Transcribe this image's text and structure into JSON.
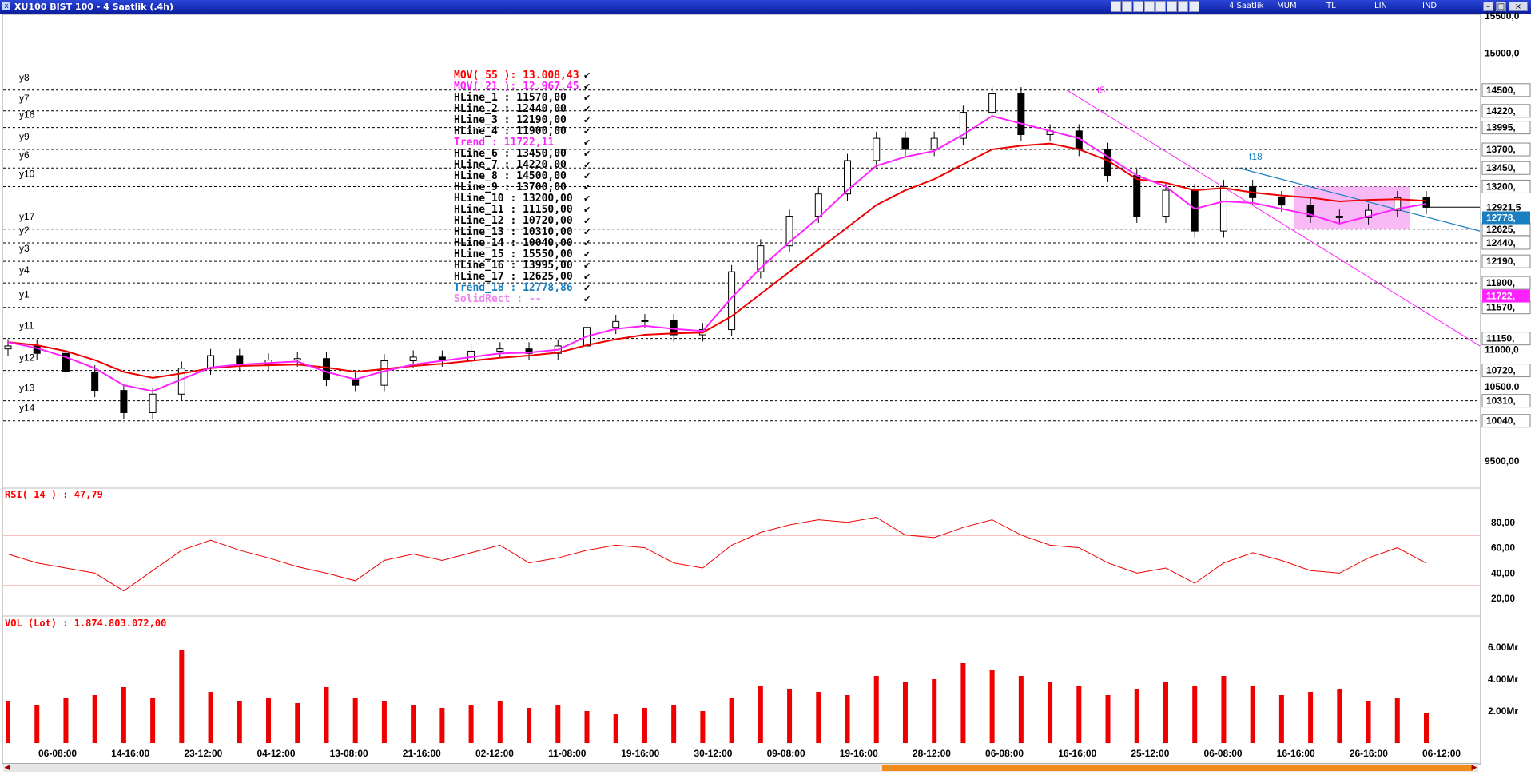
{
  "window": {
    "title": "XU100 BIST 100 - 4 Saatlik (.4h)",
    "toolbar": [
      "4 Saatlik",
      "MUM",
      "TL",
      "LIN",
      "IND"
    ]
  },
  "price_panel": {
    "legend": [
      {
        "label": "MOV( 55 ): 13.008,43",
        "color": "#ff0000"
      },
      {
        "label": "MOV( 21 ): 12.967,45",
        "color": "#ff22ff"
      },
      {
        "label": "HLine_1   : 11570,00",
        "color": "#000000"
      },
      {
        "label": "HLine_2   : 12440,00",
        "color": "#000000"
      },
      {
        "label": "HLine_3   : 12190,00",
        "color": "#000000"
      },
      {
        "label": "HLine_4   : 11900,00",
        "color": "#000000"
      },
      {
        "label": "Trend       : 11722,11",
        "color": "#ff22ff"
      },
      {
        "label": "HLine_6   : 13450,00",
        "color": "#000000"
      },
      {
        "label": "HLine_7   : 14220,00",
        "color": "#000000"
      },
      {
        "label": "HLine_8   : 14500,00",
        "color": "#000000"
      },
      {
        "label": "HLine_9   : 13700,00",
        "color": "#000000"
      },
      {
        "label": "HLine_10 : 13200,00",
        "color": "#000000"
      },
      {
        "label": "HLine_11 : 11150,00",
        "color": "#000000"
      },
      {
        "label": "HLine_12 : 10720,00",
        "color": "#000000"
      },
      {
        "label": "HLine_13 : 10310,00",
        "color": "#000000"
      },
      {
        "label": "HLine_14 : 10040,00",
        "color": "#000000"
      },
      {
        "label": "HLine_15 : 15550,00",
        "color": "#000000"
      },
      {
        "label": "HLine_16 : 13995,00",
        "color": "#000000"
      },
      {
        "label": "HLine_17 : 12625,00",
        "color": "#000000"
      },
      {
        "label": "Trend_18 : 12778,86",
        "color": "#1a7fc0"
      },
      {
        "label": "SolidRect : --",
        "color": "#ee88ee"
      }
    ],
    "hlines": [
      {
        "name": "y8",
        "value": 14500,
        "tag": "14500,"
      },
      {
        "name": "y7",
        "value": 14220,
        "tag": "14220,"
      },
      {
        "name": "y16",
        "value": 13995,
        "tag": "13995,"
      },
      {
        "name": "y9",
        "value": 13700,
        "tag": "13700,"
      },
      {
        "name": "y6",
        "value": 13450,
        "tag": "13450,"
      },
      {
        "name": "y10",
        "value": 13200,
        "tag": "13200,"
      },
      {
        "name": "y17",
        "value": 12625,
        "tag": "12625,"
      },
      {
        "name": "y2",
        "value": 12440,
        "tag": "12440,"
      },
      {
        "name": "y3",
        "value": 12190,
        "tag": "12190,"
      },
      {
        "name": "y4",
        "value": 11900,
        "tag": "11900,"
      },
      {
        "name": "y1",
        "value": 11570,
        "tag": "11570,"
      },
      {
        "name": "y11",
        "value": 11150,
        "tag": "11150,"
      },
      {
        "name": "y12",
        "value": 10720,
        "tag": "10720,"
      },
      {
        "name": "y13",
        "value": 10310,
        "tag": "10310,"
      },
      {
        "name": "y14",
        "value": 10040,
        "tag": "10040,"
      }
    ],
    "axis_ticks": [
      "15500,0",
      "15000,0",
      "11000,0",
      "10500,0",
      "9500,00"
    ],
    "markers": [
      {
        "label": "12921,5",
        "value": 12921.5,
        "bg": "#ffffff",
        "fg": "#000000"
      },
      {
        "label": "12778,",
        "value": 12778.86,
        "bg": "#1a7fc0",
        "fg": "#ffffff"
      },
      {
        "label": "11722,",
        "value": 11722.11,
        "bg": "#ff22ff",
        "fg": "#ffffff"
      }
    ],
    "trend_labels": [
      {
        "label": "t5",
        "color": "#ff22ff"
      },
      {
        "label": "t18",
        "color": "#1a7fc0"
      }
    ]
  },
  "rsi_panel": {
    "title": "RSI( 14 ) : 47,79",
    "ticks": [
      "80,00",
      "60,00",
      "40,00",
      "20,00"
    ]
  },
  "vol_panel": {
    "title": "VOL (Lot) : 1.874.803.072,00",
    "ticks": [
      "6.00Mr",
      "4.00Mr",
      "2.00Mr"
    ]
  },
  "x_axis": [
    "06-08:00",
    "14-16:00",
    "23-12:00",
    "04-12:00",
    "13-08:00",
    "21-16:00",
    "02-12:00",
    "11-08:00",
    "19-16:00",
    "30-12:00",
    "09-08:00",
    "19-16:00",
    "28-12:00",
    "06-08:00",
    "16-16:00",
    "25-12:00",
    "06-08:00",
    "16-16:00",
    "26-16:00",
    "06-12:00"
  ],
  "chart_data": [
    {
      "type": "line",
      "title": "XU100 BIST 100 - 4 Saatlik (.4h)",
      "ylim": [
        9250,
        15500
      ],
      "x_ticks": [
        "06-08:00",
        "14-16:00",
        "23-12:00",
        "04-12:00",
        "13-08:00",
        "21-16:00",
        "02-12:00",
        "11-08:00",
        "19-16:00",
        "30-12:00",
        "09-08:00",
        "19-16:00",
        "28-12:00",
        "06-08:00",
        "16-16:00",
        "25-12:00",
        "06-08:00",
        "16-16:00",
        "26-16:00",
        "06-12:00"
      ],
      "series": [
        {
          "name": "Close",
          "values": [
            11050,
            10950,
            10700,
            10450,
            10150,
            10400,
            10750,
            10920,
            10800,
            10860,
            10880,
            10600,
            10520,
            10850,
            10900,
            10860,
            10980,
            11010,
            10950,
            11050,
            11300,
            11380,
            11390,
            11200,
            11270,
            12050,
            12400,
            12800,
            13100,
            13550,
            13850,
            13700,
            13850,
            14200,
            14450,
            13900,
            13950,
            13700,
            13350,
            12800,
            13150,
            12600,
            13200,
            13050,
            12950,
            12800,
            12780,
            12880,
            13050,
            12920
          ]
        },
        {
          "name": "MOV( 21 )",
          "values": [
            11100,
            11020,
            10900,
            10750,
            10520,
            10440,
            10600,
            10760,
            10800,
            10820,
            10840,
            10700,
            10600,
            10710,
            10800,
            10850,
            10900,
            10950,
            10960,
            11000,
            11180,
            11280,
            11320,
            11280,
            11250,
            11700,
            12100,
            12450,
            12780,
            13150,
            13480,
            13600,
            13680,
            13900,
            14150,
            14050,
            13950,
            13850,
            13600,
            13350,
            13200,
            12900,
            13000,
            12980,
            12900,
            12820,
            12700,
            12800,
            12900,
            12967
          ]
        },
        {
          "name": "MOV( 55 )",
          "values": [
            11100,
            11060,
            10980,
            10860,
            10700,
            10620,
            10680,
            10750,
            10780,
            10790,
            10800,
            10760,
            10700,
            10740,
            10780,
            10810,
            10850,
            10890,
            10920,
            10960,
            11060,
            11140,
            11200,
            11220,
            11230,
            11450,
            11750,
            12050,
            12350,
            12650,
            12950,
            13150,
            13300,
            13500,
            13700,
            13750,
            13780,
            13700,
            13550,
            13300,
            13250,
            13150,
            13180,
            13120,
            13080,
            13050,
            13000,
            13020,
            13030,
            13008
          ]
        }
      ]
    },
    {
      "type": "line",
      "title": "RSI( 14 )",
      "ylim": [
        10,
        95
      ],
      "series": [
        {
          "name": "RSI( 14 )",
          "values": [
            55,
            48,
            44,
            40,
            26,
            42,
            58,
            66,
            58,
            52,
            45,
            40,
            34,
            50,
            55,
            50,
            56,
            62,
            48,
            52,
            58,
            62,
            60,
            48,
            44,
            62,
            72,
            78,
            82,
            80,
            84,
            70,
            68,
            76,
            82,
            70,
            62,
            60,
            48,
            40,
            44,
            32,
            48,
            56,
            50,
            42,
            40,
            52,
            60,
            47.79
          ]
        }
      ]
    },
    {
      "type": "bar",
      "title": "VOL (Lot)",
      "ylabel": "Mr",
      "ylim": [
        0,
        7
      ],
      "series": [
        {
          "name": "VOL (Lot)",
          "values": [
            2.6,
            2.4,
            2.8,
            3.0,
            3.5,
            2.8,
            5.8,
            3.2,
            2.6,
            2.8,
            2.5,
            3.5,
            2.8,
            2.6,
            2.4,
            2.2,
            2.4,
            2.6,
            2.2,
            2.4,
            2.0,
            1.8,
            2.2,
            2.4,
            2.0,
            2.8,
            3.6,
            3.4,
            3.2,
            3.0,
            4.2,
            3.8,
            4.0,
            5.0,
            4.6,
            4.2,
            3.8,
            3.6,
            3.0,
            3.4,
            3.8,
            3.6,
            4.2,
            3.6,
            3.0,
            3.2,
            3.4,
            2.6,
            2.8,
            1.87
          ]
        }
      ]
    }
  ]
}
